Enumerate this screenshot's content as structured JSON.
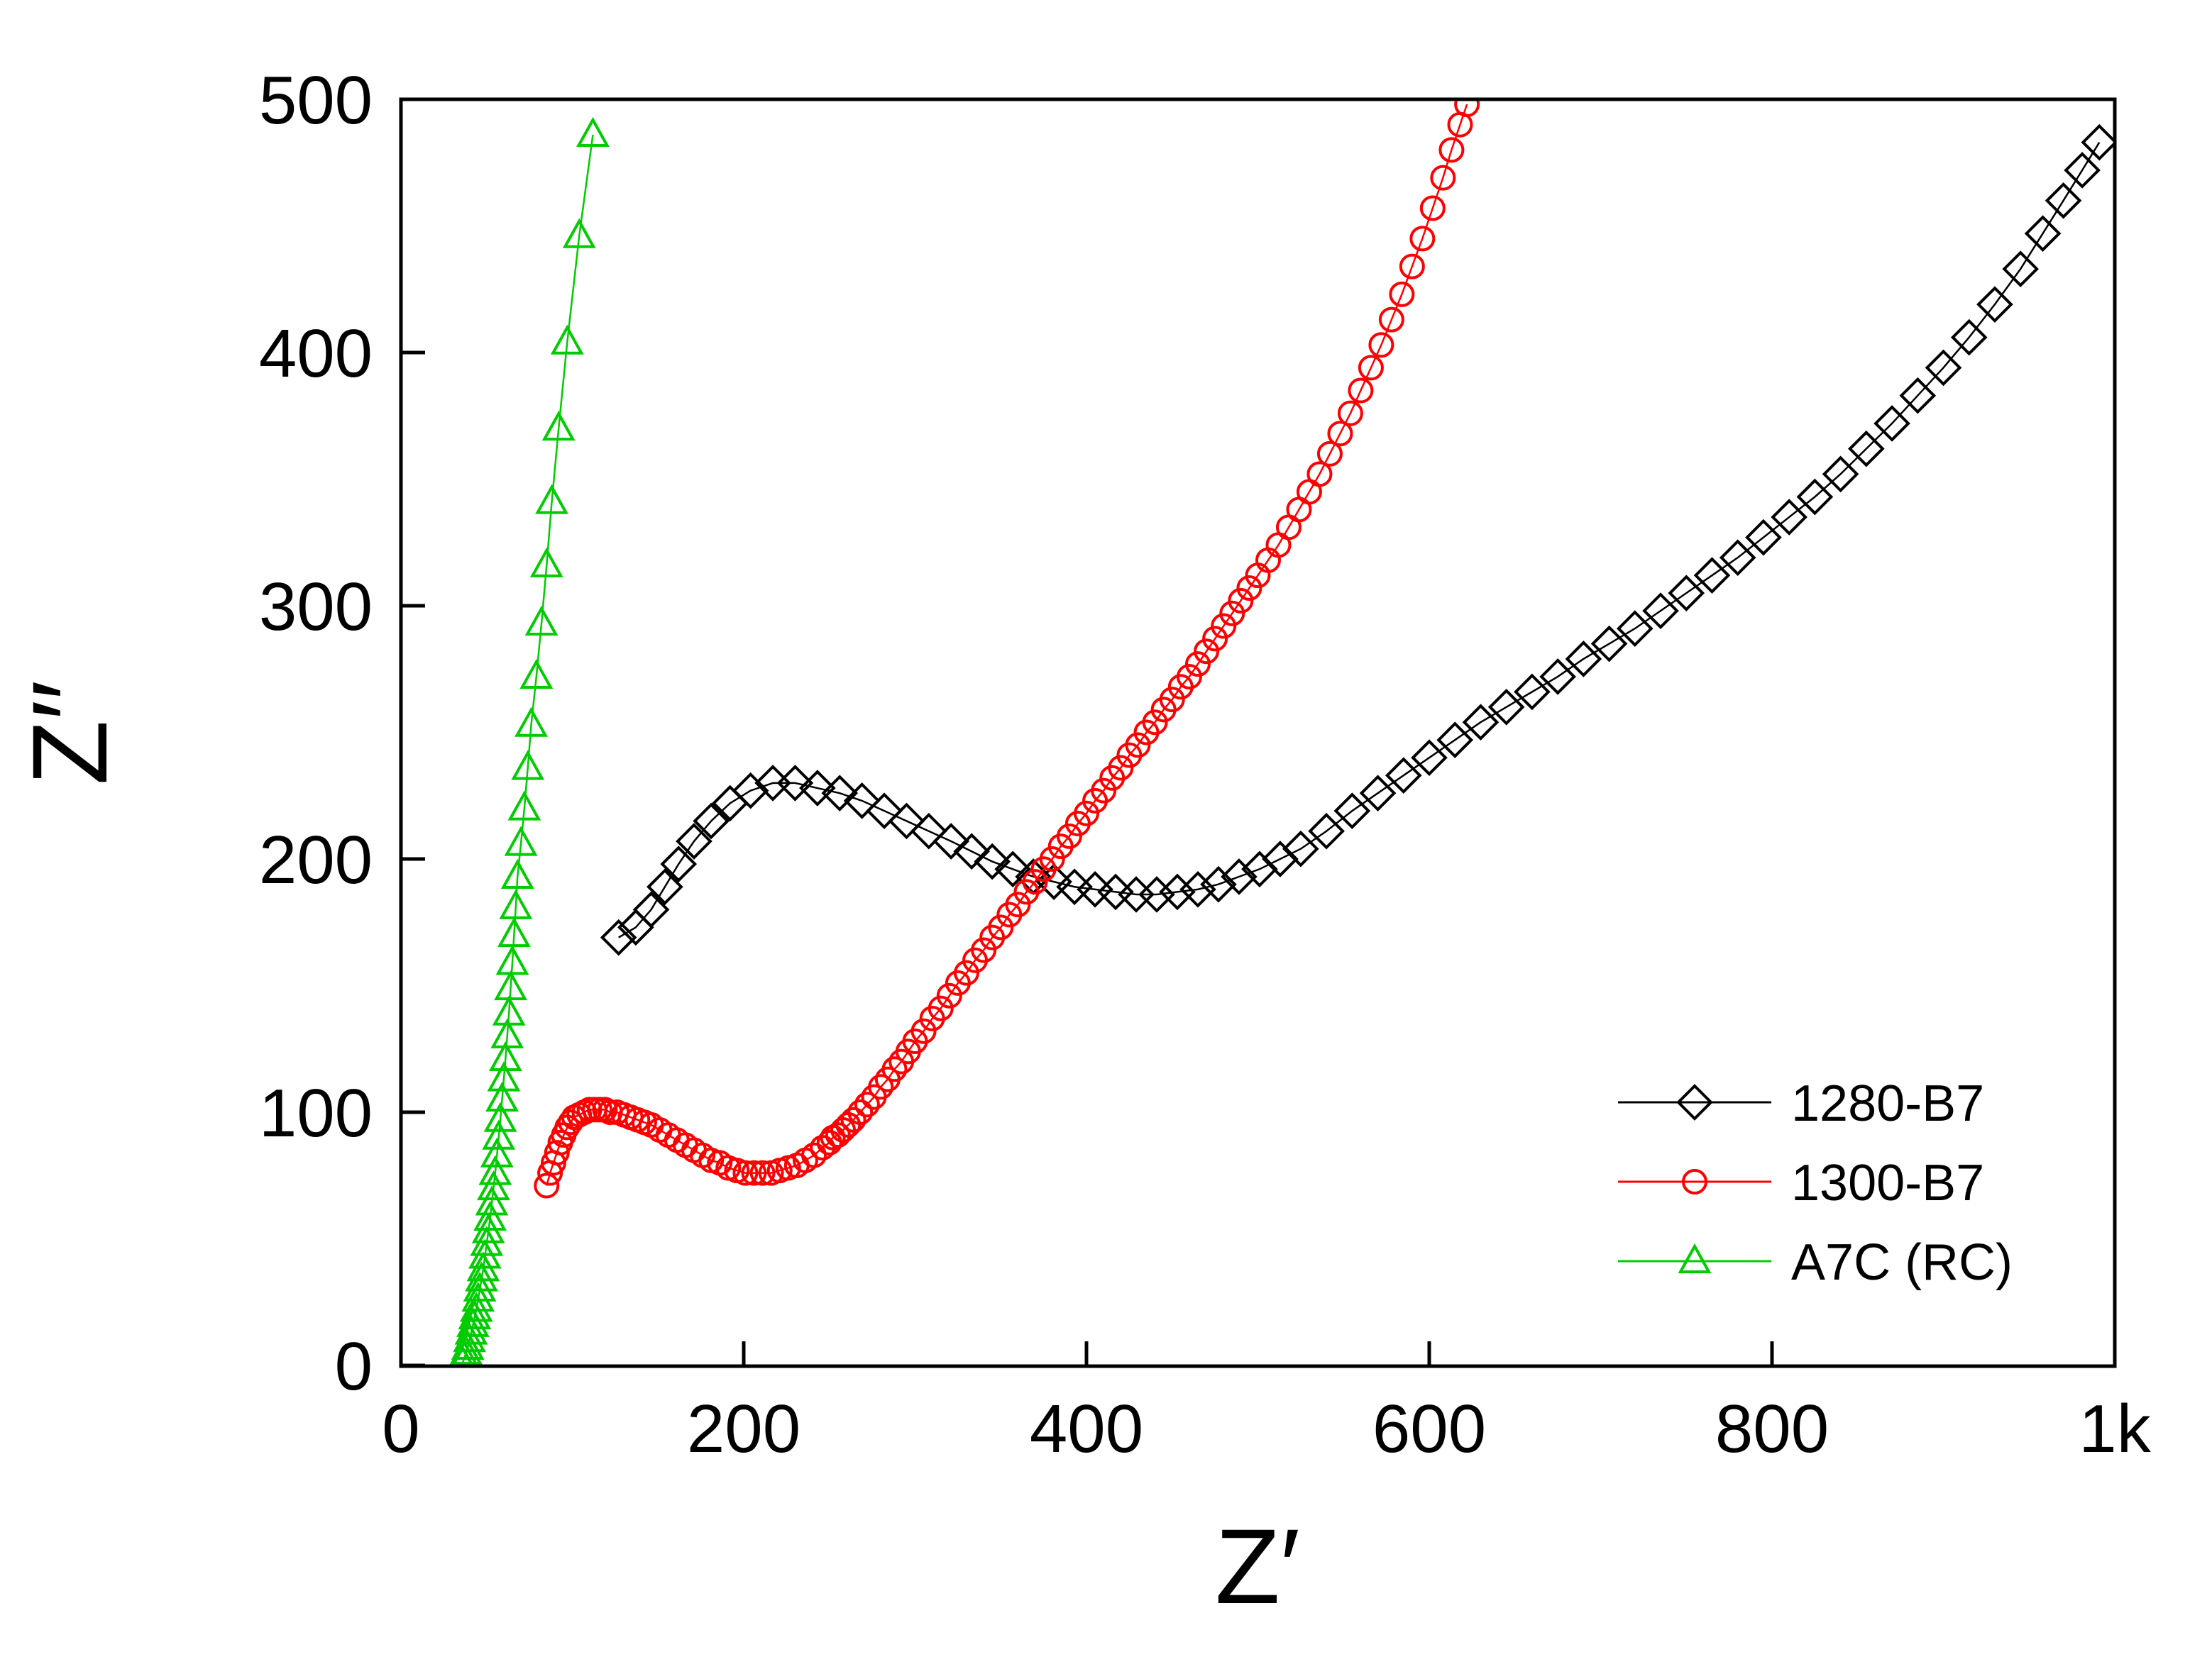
{
  "figure": {
    "background": "#ffffff"
  },
  "chart_data": {
    "type": "scatter",
    "title": "",
    "xlabel": "Z′",
    "ylabel": "Z′′",
    "xlim": [
      0,
      1000
    ],
    "ylim": [
      0,
      500
    ],
    "x_ticks": [
      0,
      200,
      400,
      600,
      800,
      1000
    ],
    "x_tick_labels": [
      "0",
      "200",
      "400",
      "600",
      "800",
      "1k"
    ],
    "y_ticks": [
      0,
      100,
      200,
      300,
      400,
      500
    ],
    "y_tick_labels": [
      "0",
      "100",
      "200",
      "300",
      "400",
      "500"
    ],
    "grid": false,
    "legend_position": "right-center",
    "series": [
      {
        "name": "1280-B7",
        "color": "#000000",
        "marker": "diamond",
        "points": [
          [
            127,
            169
          ],
          [
            137,
            173
          ],
          [
            146,
            180
          ],
          [
            154,
            189
          ],
          [
            162,
            198
          ],
          [
            171,
            207
          ],
          [
            181,
            215
          ],
          [
            192,
            222
          ],
          [
            204,
            227
          ],
          [
            217,
            230
          ],
          [
            230,
            230
          ],
          [
            243,
            228
          ],
          [
            256,
            226
          ],
          [
            269,
            223
          ],
          [
            282,
            219
          ],
          [
            295,
            215
          ],
          [
            308,
            211
          ],
          [
            321,
            207
          ],
          [
            333,
            203
          ],
          [
            345,
            199
          ],
          [
            357,
            196
          ],
          [
            369,
            193
          ],
          [
            381,
            191
          ],
          [
            393,
            189
          ],
          [
            405,
            188
          ],
          [
            417,
            187
          ],
          [
            429,
            186
          ],
          [
            441,
            186
          ],
          [
            453,
            187
          ],
          [
            465,
            188
          ],
          [
            477,
            190
          ],
          [
            489,
            193
          ],
          [
            501,
            196
          ],
          [
            513,
            200
          ],
          [
            525,
            204
          ],
          [
            540,
            211
          ],
          [
            555,
            219
          ],
          [
            570,
            226
          ],
          [
            585,
            233
          ],
          [
            600,
            240
          ],
          [
            615,
            247
          ],
          [
            630,
            254
          ],
          [
            645,
            260
          ],
          [
            660,
            266
          ],
          [
            675,
            272
          ],
          [
            690,
            279
          ],
          [
            705,
            285
          ],
          [
            720,
            291
          ],
          [
            735,
            298
          ],
          [
            750,
            305
          ],
          [
            765,
            312
          ],
          [
            780,
            319
          ],
          [
            795,
            327
          ],
          [
            810,
            335
          ],
          [
            825,
            343
          ],
          [
            840,
            352
          ],
          [
            855,
            362
          ],
          [
            870,
            372
          ],
          [
            885,
            383
          ],
          [
            900,
            394
          ],
          [
            915,
            406
          ],
          [
            930,
            419
          ],
          [
            945,
            433
          ],
          [
            958,
            447
          ],
          [
            970,
            460
          ],
          [
            981,
            472
          ],
          [
            991,
            483
          ]
        ]
      },
      {
        "name": "1300-B7",
        "color": "#FF0000",
        "marker": "circle",
        "points": [
          [
            85,
            71
          ],
          [
            87,
            76
          ],
          [
            89,
            80
          ],
          [
            91,
            84
          ],
          [
            93,
            88
          ],
          [
            95,
            91
          ],
          [
            97,
            94
          ],
          [
            99,
            96
          ],
          [
            101,
            98
          ],
          [
            104,
            99
          ],
          [
            107,
            100
          ],
          [
            110,
            101
          ],
          [
            113,
            101
          ],
          [
            116,
            101
          ],
          [
            119,
            101
          ],
          [
            122,
            100
          ],
          [
            126,
            100
          ],
          [
            130,
            99
          ],
          [
            134,
            98
          ],
          [
            138,
            97
          ],
          [
            142,
            96
          ],
          [
            146,
            95
          ],
          [
            151,
            93
          ],
          [
            156,
            91
          ],
          [
            161,
            89
          ],
          [
            166,
            87
          ],
          [
            171,
            85
          ],
          [
            176,
            83
          ],
          [
            181,
            81
          ],
          [
            186,
            80
          ],
          [
            191,
            78
          ],
          [
            196,
            77
          ],
          [
            201,
            76
          ],
          [
            206,
            76
          ],
          [
            211,
            76
          ],
          [
            216,
            76
          ],
          [
            221,
            77
          ],
          [
            226,
            78
          ],
          [
            231,
            79
          ],
          [
            236,
            81
          ],
          [
            241,
            83
          ],
          [
            246,
            86
          ],
          [
            250,
            88
          ],
          [
            252,
            90
          ],
          [
            255,
            91
          ],
          [
            258,
            93
          ],
          [
            261,
            95
          ],
          [
            264,
            97
          ],
          [
            268,
            100
          ],
          [
            272,
            103
          ],
          [
            276,
            106
          ],
          [
            280,
            110
          ],
          [
            284,
            113
          ],
          [
            288,
            117
          ],
          [
            292,
            120
          ],
          [
            296,
            124
          ],
          [
            300,
            128
          ],
          [
            305,
            132
          ],
          [
            310,
            137
          ],
          [
            315,
            141
          ],
          [
            320,
            146
          ],
          [
            325,
            151
          ],
          [
            330,
            155
          ],
          [
            335,
            160
          ],
          [
            340,
            164
          ],
          [
            345,
            169
          ],
          [
            350,
            173
          ],
          [
            355,
            178
          ],
          [
            360,
            182
          ],
          [
            365,
            187
          ],
          [
            370,
            191
          ],
          [
            375,
            196
          ],
          [
            380,
            200
          ],
          [
            385,
            205
          ],
          [
            390,
            209
          ],
          [
            395,
            214
          ],
          [
            400,
            218
          ],
          [
            405,
            223
          ],
          [
            410,
            227
          ],
          [
            415,
            232
          ],
          [
            420,
            236
          ],
          [
            425,
            241
          ],
          [
            430,
            245
          ],
          [
            435,
            250
          ],
          [
            440,
            254
          ],
          [
            445,
            259
          ],
          [
            450,
            263
          ],
          [
            455,
            268
          ],
          [
            460,
            272
          ],
          [
            465,
            277
          ],
          [
            470,
            282
          ],
          [
            475,
            287
          ],
          [
            480,
            292
          ],
          [
            485,
            297
          ],
          [
            490,
            302
          ],
          [
            495,
            307
          ],
          [
            500,
            312
          ],
          [
            506,
            318
          ],
          [
            512,
            324
          ],
          [
            518,
            331
          ],
          [
            524,
            338
          ],
          [
            530,
            345
          ],
          [
            536,
            352
          ],
          [
            542,
            360
          ],
          [
            548,
            368
          ],
          [
            554,
            376
          ],
          [
            560,
            385
          ],
          [
            566,
            394
          ],
          [
            572,
            403
          ],
          [
            578,
            413
          ],
          [
            584,
            423
          ],
          [
            590,
            434
          ],
          [
            596,
            445
          ],
          [
            602,
            457
          ],
          [
            608,
            469
          ],
          [
            613,
            480
          ],
          [
            618,
            490
          ],
          [
            622,
            498
          ]
        ]
      },
      {
        "name": "A7C (RC)",
        "color": "#00CC00",
        "marker": "triangle",
        "points": [
          [
            36,
            1
          ],
          [
            37,
            3
          ],
          [
            38,
            5
          ],
          [
            39,
            7
          ],
          [
            40,
            10
          ],
          [
            41,
            13
          ],
          [
            42,
            16
          ],
          [
            43,
            19
          ],
          [
            44,
            22
          ],
          [
            45,
            26
          ],
          [
            46,
            30
          ],
          [
            47,
            34
          ],
          [
            48,
            38
          ],
          [
            49,
            43
          ],
          [
            50,
            48
          ],
          [
            51,
            53
          ],
          [
            52,
            58
          ],
          [
            53,
            64
          ],
          [
            54,
            70
          ],
          [
            55,
            76
          ],
          [
            56,
            83
          ],
          [
            57,
            90
          ],
          [
            58,
            97
          ],
          [
            59,
            105
          ],
          [
            60,
            113
          ],
          [
            61,
            121
          ],
          [
            62,
            130
          ],
          [
            63,
            139
          ],
          [
            64,
            149
          ],
          [
            65,
            159
          ],
          [
            66,
            170
          ],
          [
            67,
            181
          ],
          [
            68,
            193
          ],
          [
            70,
            206
          ],
          [
            72,
            220
          ],
          [
            74,
            236
          ],
          [
            76,
            253
          ],
          [
            79,
            272
          ],
          [
            82,
            293
          ],
          [
            85,
            316
          ],
          [
            88,
            341
          ],
          [
            92,
            370
          ],
          [
            97,
            404
          ],
          [
            104,
            446
          ],
          [
            112,
            486
          ]
        ]
      }
    ]
  }
}
